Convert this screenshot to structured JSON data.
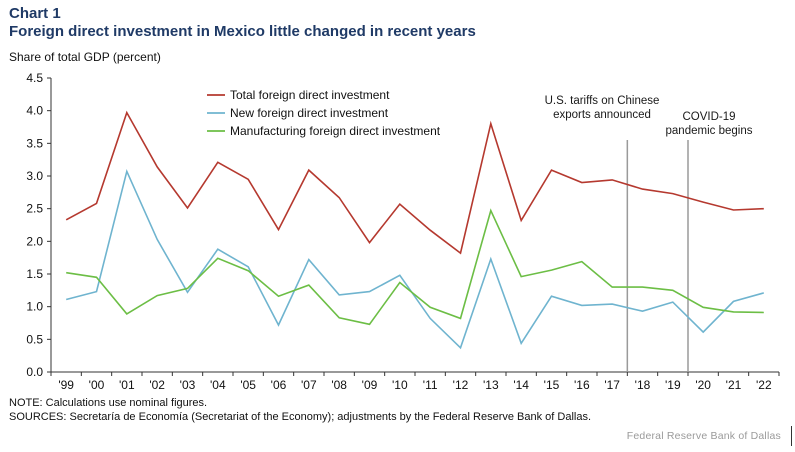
{
  "header": {
    "label": "Chart 1",
    "title": "Foreign direct investment in Mexico little changed in recent years",
    "unit": "Share of total GDP (percent)"
  },
  "annotations": {
    "tariffs_line1": "U.S. tariffs on Chinese",
    "tariffs_line2": "exports announced",
    "covid_line1": "COVID-19",
    "covid_line2": "pandemic begins"
  },
  "footer": {
    "note": "NOTE: Calculations use nominal figures.",
    "sources": "SOURCES: Secretaría de Economía (Secretariat of the Economy); adjustments by the Federal Reserve Bank of Dallas.",
    "credit": "Federal Reserve Bank of Dallas"
  },
  "chart_data": {
    "type": "line",
    "categories": [
      "'99",
      "'00",
      "'01",
      "'02",
      "'03",
      "'04",
      "'05",
      "'06",
      "'07",
      "'08",
      "'09",
      "'10",
      "'11",
      "'12",
      "'13",
      "'14",
      "'15",
      "'16",
      "'17",
      "'18",
      "'19",
      "'20",
      "'21",
      "'22"
    ],
    "ylim": [
      0,
      4.5
    ],
    "yticks": [
      "0.0",
      "0.5",
      "1.0",
      "1.5",
      "2.0",
      "2.5",
      "3.0",
      "3.5",
      "4.0",
      "4.5"
    ],
    "grid": false,
    "legend_position": "top-center",
    "series": [
      {
        "name": "Total foreign direct investment",
        "color": "#b5392f",
        "values": [
          2.33,
          2.58,
          3.97,
          3.14,
          2.51,
          3.21,
          2.95,
          2.18,
          3.09,
          2.67,
          1.98,
          2.57,
          2.17,
          1.82,
          3.8,
          2.32,
          3.09,
          2.9,
          2.94,
          2.8,
          2.73,
          2.6,
          2.48,
          2.5
        ]
      },
      {
        "name": "New foreign direct investment",
        "color": "#6fb4cf",
        "values": [
          1.11,
          1.23,
          3.07,
          2.03,
          1.22,
          1.88,
          1.61,
          0.72,
          1.72,
          1.18,
          1.23,
          1.48,
          0.82,
          0.37,
          1.73,
          0.44,
          1.16,
          1.02,
          1.04,
          0.93,
          1.07,
          0.61,
          1.08,
          1.21
        ]
      },
      {
        "name": "Manufacturing foreign direct investment",
        "color": "#6cbe45",
        "values": [
          1.52,
          1.45,
          0.89,
          1.17,
          1.28,
          1.74,
          1.55,
          1.16,
          1.33,
          0.83,
          0.73,
          1.37,
          0.99,
          0.82,
          2.47,
          1.46,
          1.56,
          1.69,
          1.3,
          1.3,
          1.25,
          0.99,
          0.92,
          0.91
        ]
      }
    ],
    "events": [
      {
        "at": "'18",
        "color": "#9a9a9a"
      },
      {
        "at": "'20",
        "color": "#9a9a9a"
      }
    ]
  }
}
